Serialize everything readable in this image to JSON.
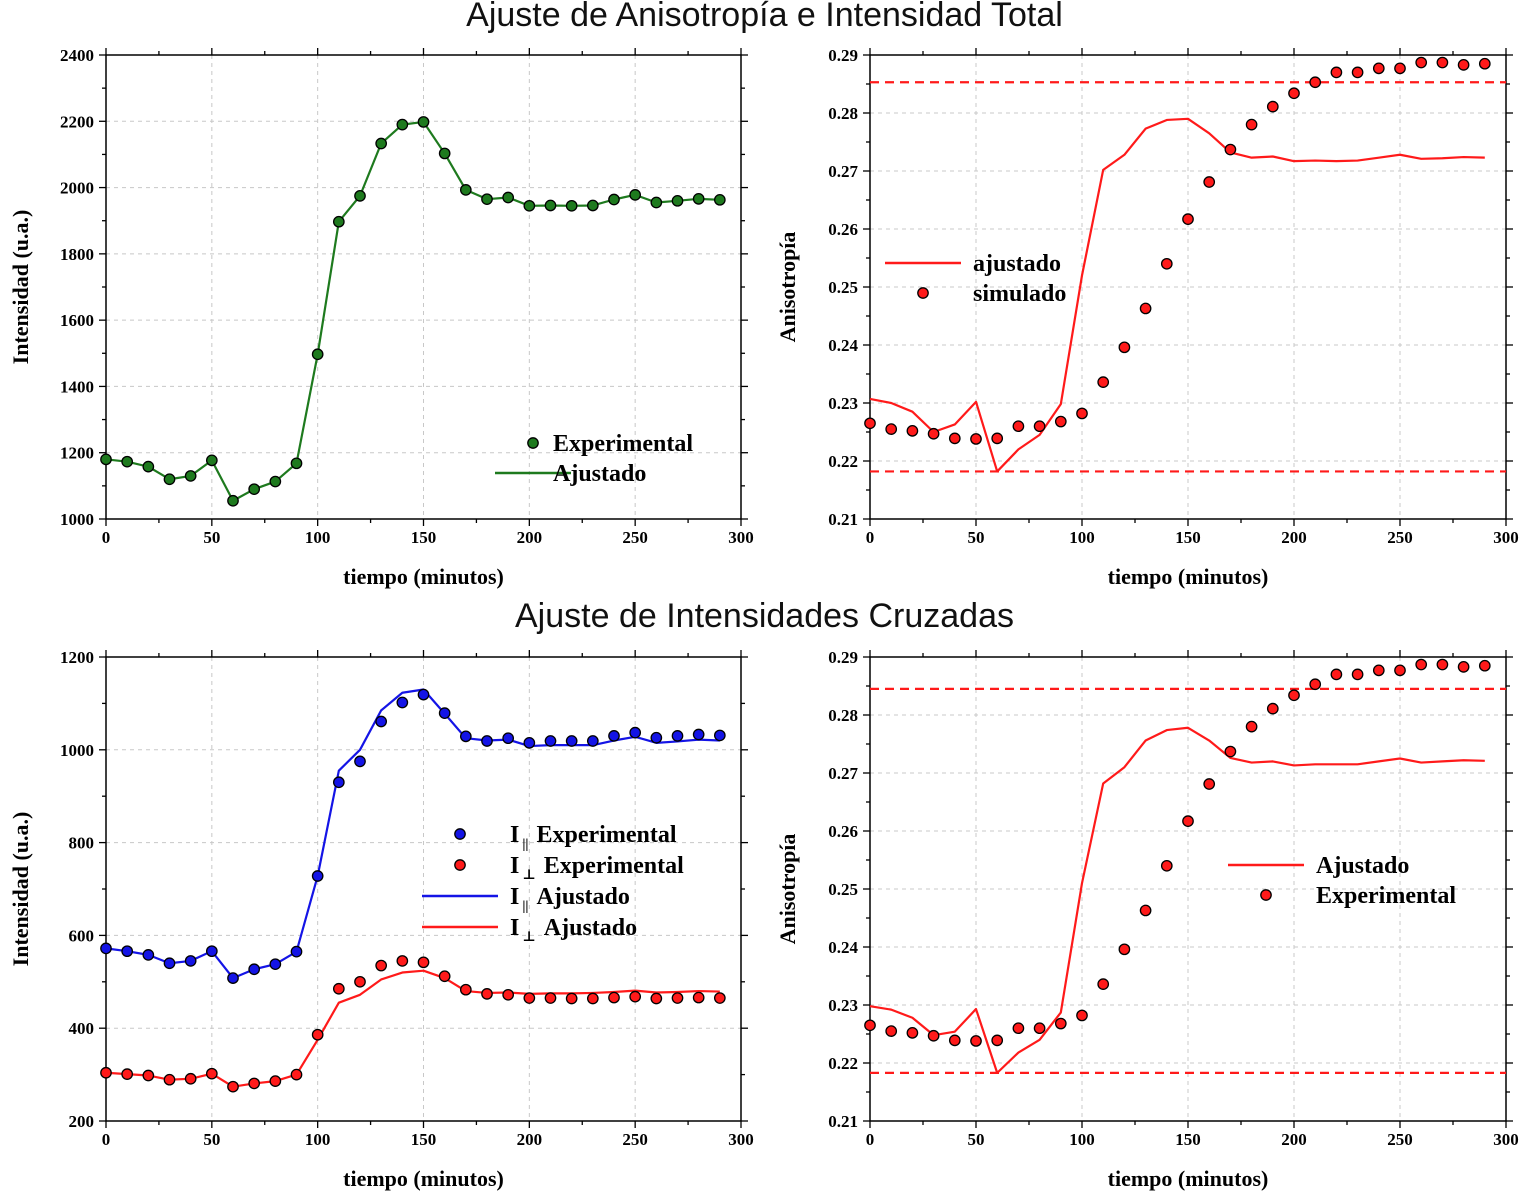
{
  "titles": {
    "top": "Ajuste de Anisotropía e Intensidad Total",
    "bottom": "Ajuste de Intensidades Cruzadas"
  },
  "colors": {
    "green": "#1e7a1e",
    "red": "#ff1a1a",
    "blue": "#1414e6",
    "grid": "#c8c8c8"
  },
  "chart_data": [
    {
      "id": "intensity_total",
      "type": "line",
      "xlabel": "tiempo (minutos)",
      "ylabel": "Intensidad (u.a.)",
      "xlim": [
        0,
        300
      ],
      "ylim": [
        1000,
        2400
      ],
      "xticks": [
        0,
        50,
        100,
        150,
        200,
        250,
        300
      ],
      "yticks": [
        1000,
        1200,
        1400,
        1600,
        1800,
        2000,
        2200,
        2400
      ],
      "legend_position": "bottom-right",
      "x": [
        0,
        10,
        20,
        30,
        40,
        50,
        60,
        70,
        80,
        90,
        100,
        110,
        120,
        130,
        140,
        150,
        160,
        170,
        180,
        190,
        200,
        210,
        220,
        230,
        240,
        250,
        260,
        270,
        280,
        290
      ],
      "series": [
        {
          "name": "Experimental",
          "kind": "points",
          "color": "#1e7a1e",
          "values": [
            1180,
            1173,
            1158,
            1120,
            1130,
            1177,
            1055,
            1090,
            1113,
            1168,
            1497,
            1897,
            1975,
            2133,
            2190,
            2198,
            2103,
            1993,
            1965,
            1970,
            1945,
            1946,
            1945,
            1946,
            1964,
            1978,
            1955,
            1960,
            1966,
            1963
          ]
        },
        {
          "name": "Ajustado",
          "kind": "line",
          "color": "#1e7a1e",
          "values": [
            1180,
            1173,
            1158,
            1120,
            1130,
            1177,
            1055,
            1090,
            1113,
            1168,
            1497,
            1897,
            1975,
            2133,
            2190,
            2198,
            2103,
            1993,
            1965,
            1970,
            1945,
            1946,
            1945,
            1946,
            1964,
            1978,
            1955,
            1960,
            1966,
            1963
          ]
        }
      ]
    },
    {
      "id": "anisotropy_total",
      "type": "line",
      "xlabel": "tiempo (minutos)",
      "ylabel": "Anisotropía",
      "xlim": [
        0,
        300
      ],
      "ylim": [
        0.21,
        0.29
      ],
      "xticks": [
        0,
        50,
        100,
        150,
        200,
        250,
        300
      ],
      "yticks": [
        0.21,
        0.22,
        0.23,
        0.24,
        0.25,
        0.26,
        0.27,
        0.28,
        0.29
      ],
      "legend_position": "center-left",
      "hlines": [
        0.2853,
        0.2182
      ],
      "x": [
        0,
        10,
        20,
        30,
        40,
        50,
        60,
        70,
        80,
        90,
        100,
        110,
        120,
        130,
        140,
        150,
        160,
        170,
        180,
        190,
        200,
        210,
        220,
        230,
        240,
        250,
        260,
        270,
        280,
        290
      ],
      "series": [
        {
          "name": "ajustado",
          "kind": "line",
          "color": "#ff1a1a",
          "x": [
            0,
            10,
            20,
            30,
            40,
            50,
            60,
            70,
            80,
            90,
            100,
            110,
            120,
            130,
            140,
            150,
            160,
            170,
            180,
            190,
            200,
            210,
            220,
            230,
            240,
            250,
            260,
            270,
            280,
            290
          ],
          "values": [
            0.2307,
            0.23,
            0.2285,
            0.225,
            0.2263,
            0.2302,
            0.2182,
            0.222,
            0.2245,
            0.2298,
            0.252,
            0.2702,
            0.2728,
            0.2773,
            0.2788,
            0.279,
            0.2765,
            0.2732,
            0.2723,
            0.2725,
            0.2717,
            0.2718,
            0.2717,
            0.2718,
            0.2723,
            0.2728,
            0.2721,
            0.2722,
            0.2724,
            0.2723
          ]
        },
        {
          "name": "simulado",
          "kind": "points",
          "color": "#ff1a1a",
          "values": [
            0.2265,
            0.2255,
            0.2252,
            0.2247,
            0.2239,
            0.2238,
            0.2239,
            0.226,
            0.226,
            0.2268,
            0.2282,
            0.2336,
            0.2396,
            0.2463,
            0.254,
            0.2617,
            0.2681,
            0.2737,
            0.278,
            0.2811,
            0.2834,
            0.2853,
            0.287,
            0.287,
            0.2877,
            0.2877,
            0.2887,
            0.2887,
            0.2883,
            0.2885
          ]
        }
      ]
    },
    {
      "id": "crossed_intensities",
      "type": "line",
      "xlabel": "tiempo (minutos)",
      "ylabel": "Intensidad (u.a.)",
      "xlim": [
        0,
        300
      ],
      "ylim": [
        200,
        1200
      ],
      "xticks": [
        0,
        50,
        100,
        150,
        200,
        250,
        300
      ],
      "yticks": [
        200,
        400,
        600,
        800,
        1000,
        1200
      ],
      "legend_position": "center-right",
      "x": [
        0,
        10,
        20,
        30,
        40,
        50,
        60,
        70,
        80,
        90,
        100,
        110,
        120,
        130,
        140,
        150,
        160,
        170,
        180,
        190,
        200,
        210,
        220,
        230,
        240,
        250,
        260,
        270,
        280,
        290
      ],
      "series": [
        {
          "name": "I",
          "sub": "||",
          "suffix": "Experimental",
          "kind": "points",
          "color": "#1414e6",
          "values": [
            572,
            566,
            558,
            540,
            545,
            566,
            508,
            527,
            538,
            565,
            728,
            930,
            975,
            1061,
            1102,
            1119,
            1079,
            1029,
            1019,
            1025,
            1015,
            1019,
            1019,
            1019,
            1030,
            1037,
            1026,
            1030,
            1033,
            1031
          ]
        },
        {
          "name": "I",
          "sub": "⊥",
          "suffix": "Experimental",
          "kind": "points",
          "color": "#ff1a1a",
          "values": [
            304,
            301,
            298,
            289,
            291,
            302,
            274,
            281,
            286,
            300,
            386,
            485,
            500,
            535,
            545,
            542,
            512,
            483,
            474,
            472,
            465,
            465,
            464,
            464,
            466,
            468,
            464,
            465,
            466,
            465
          ]
        },
        {
          "name": "I",
          "sub": "||",
          "suffix": "Ajustado",
          "kind": "line",
          "color": "#1414e6",
          "values": [
            572,
            566,
            558,
            540,
            545,
            566,
            508,
            527,
            538,
            565,
            728,
            955,
            1000,
            1085,
            1123,
            1130,
            1078,
            1025,
            1020,
            1022,
            1008,
            1010,
            1010,
            1010,
            1020,
            1028,
            1015,
            1018,
            1022,
            1020
          ]
        },
        {
          "name": "I",
          "sub": "⊥",
          "suffix": "Ajustado",
          "kind": "line",
          "color": "#ff1a1a",
          "values": [
            304,
            301,
            298,
            289,
            291,
            302,
            274,
            281,
            286,
            300,
            375,
            455,
            472,
            505,
            520,
            524,
            508,
            480,
            476,
            477,
            474,
            475,
            475,
            476,
            478,
            481,
            477,
            478,
            480,
            479
          ]
        }
      ]
    },
    {
      "id": "anisotropy_crossed",
      "type": "line",
      "xlabel": "tiempo (minutos)",
      "ylabel": "Anisotropía",
      "xlim": [
        0,
        300
      ],
      "ylim": [
        0.21,
        0.29
      ],
      "xticks": [
        0,
        50,
        100,
        150,
        200,
        250,
        300
      ],
      "yticks": [
        0.21,
        0.22,
        0.23,
        0.24,
        0.25,
        0.26,
        0.27,
        0.28,
        0.29
      ],
      "legend_position": "center-right",
      "hlines": [
        0.2845,
        0.2183
      ],
      "x": [
        0,
        10,
        20,
        30,
        40,
        50,
        60,
        70,
        80,
        90,
        100,
        110,
        120,
        130,
        140,
        150,
        160,
        170,
        180,
        190,
        200,
        210,
        220,
        230,
        240,
        250,
        260,
        270,
        280,
        290
      ],
      "series": [
        {
          "name": "Ajustado",
          "kind": "line",
          "color": "#ff1a1a",
          "values": [
            0.2298,
            0.2292,
            0.2278,
            0.2248,
            0.2254,
            0.2293,
            0.2183,
            0.2218,
            0.224,
            0.2287,
            0.251,
            0.2682,
            0.271,
            0.2756,
            0.2774,
            0.2778,
            0.2756,
            0.2726,
            0.2718,
            0.272,
            0.2713,
            0.2715,
            0.2715,
            0.2715,
            0.272,
            0.2725,
            0.2718,
            0.272,
            0.2722,
            0.2721
          ]
        },
        {
          "name": "Experimental",
          "kind": "points",
          "color": "#ff1a1a",
          "values": [
            0.2265,
            0.2255,
            0.2252,
            0.2247,
            0.2239,
            0.2238,
            0.2239,
            0.226,
            0.226,
            0.2268,
            0.2282,
            0.2336,
            0.2396,
            0.2463,
            0.254,
            0.2617,
            0.2681,
            0.2737,
            0.278,
            0.2811,
            0.2834,
            0.2853,
            0.287,
            0.287,
            0.2877,
            0.2877,
            0.2887,
            0.2887,
            0.2883,
            0.2885
          ]
        }
      ]
    }
  ]
}
